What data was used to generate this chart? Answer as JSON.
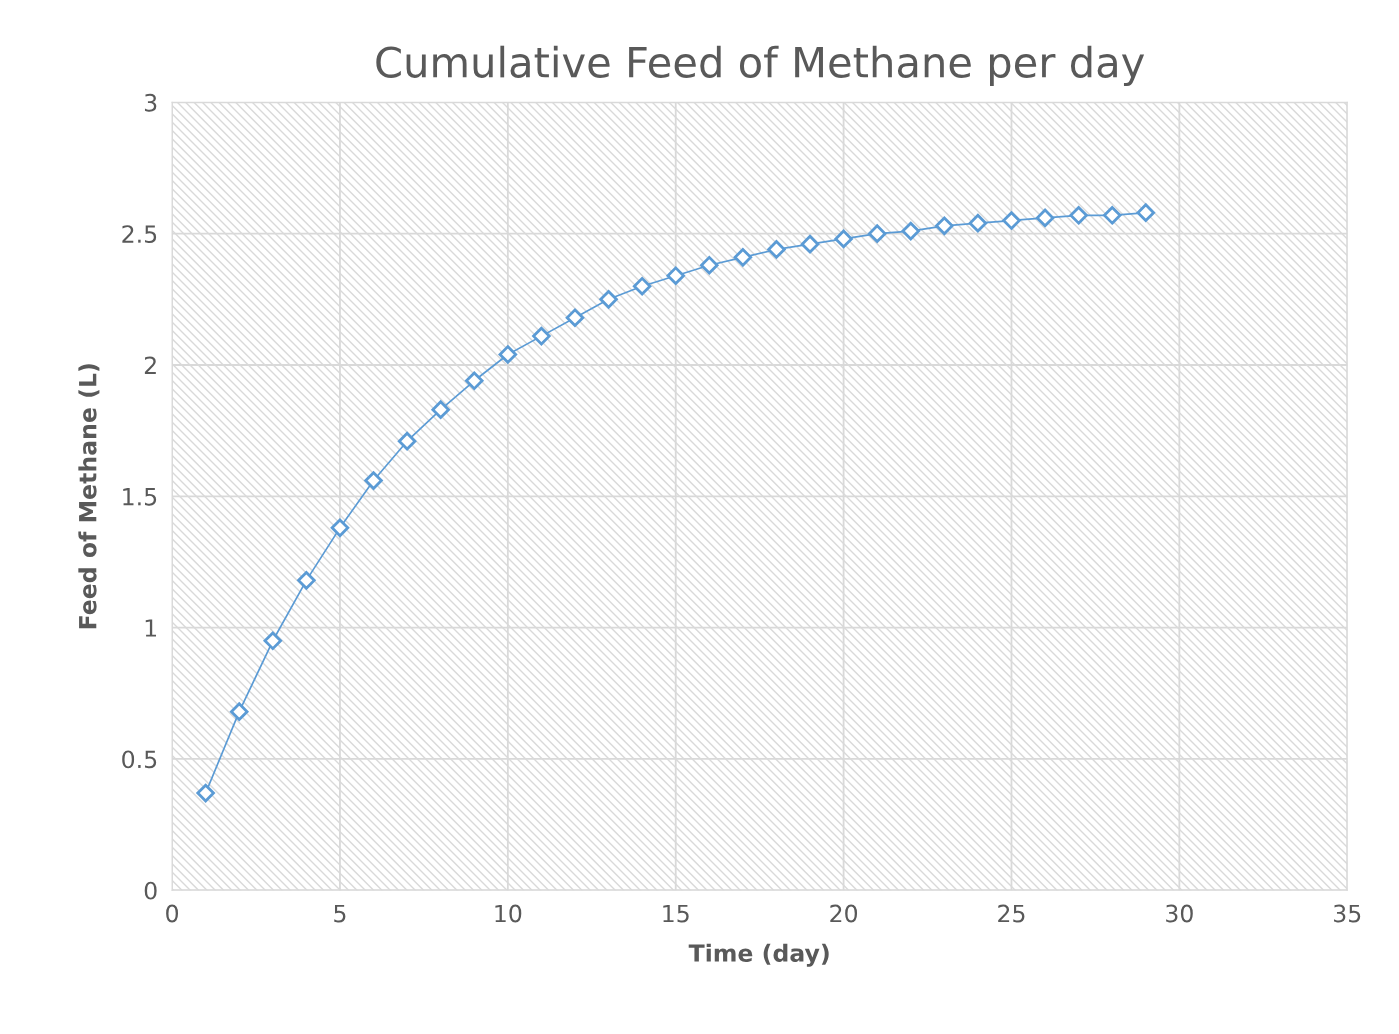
{
  "chart_data": {
    "type": "line",
    "title": "Cumulative Feed of Methane per day",
    "xlabel": "Time (day)",
    "ylabel": "Feed of Methane (L)",
    "x": [
      1,
      2,
      3,
      4,
      5,
      6,
      7,
      8,
      9,
      10,
      11,
      12,
      13,
      14,
      15,
      16,
      17,
      18,
      19,
      20,
      21,
      22,
      23,
      24,
      25,
      26,
      27,
      28,
      29
    ],
    "series": [
      {
        "color": "#5b9bd5",
        "values": [
          0.37,
          0.68,
          0.95,
          1.18,
          1.38,
          1.56,
          1.71,
          1.83,
          1.94,
          2.04,
          2.11,
          2.18,
          2.25,
          2.3,
          2.34,
          2.38,
          2.41,
          2.44,
          2.46,
          2.48,
          2.5,
          2.51,
          2.53,
          2.54,
          2.55,
          2.56,
          2.57,
          2.57,
          2.58
        ]
      }
    ],
    "xlim": [
      0,
      35
    ],
    "xticks": [
      0,
      5,
      10,
      15,
      20,
      25,
      30,
      35
    ],
    "ylim": [
      0,
      3
    ],
    "yticks": [
      0,
      0.5,
      1,
      1.5,
      2,
      2.5,
      3
    ],
    "grid": true,
    "legend": false,
    "marker": "diamond",
    "line_style": "solid"
  }
}
